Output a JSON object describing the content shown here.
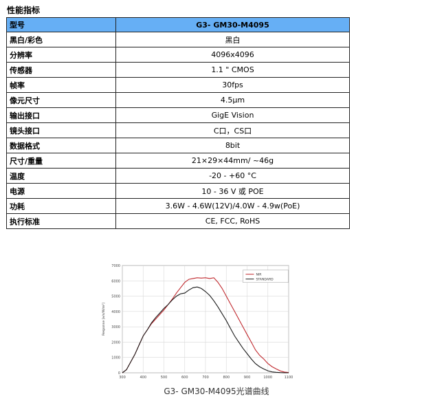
{
  "section_title": "性能指标",
  "spec_table": {
    "header": {
      "key": "型号",
      "value": "G3- GM30-M4095"
    },
    "rows": [
      {
        "key": "黑白/彩色",
        "value": "黑白"
      },
      {
        "key": "分辨率",
        "value": "4096x4096"
      },
      {
        "key": "传感器",
        "value": "1.1 \" CMOS"
      },
      {
        "key": "帧率",
        "value": "30fps"
      },
      {
        "key": "像元尺寸",
        "value": "4.5μm"
      },
      {
        "key": "输出接口",
        "value": "GigE Vision"
      },
      {
        "key": "镜头接口",
        "value": "C口，CS口"
      },
      {
        "key": "数据格式",
        "value": "8bit"
      },
      {
        "key": "尺寸/重量",
        "value": "21×29×44mm/ ~46g"
      },
      {
        "key": "温度",
        "value": "-20 - +60 °C"
      },
      {
        "key": "电源",
        "value": "10 - 36 V 或 POE"
      },
      {
        "key": "功耗",
        "value": "3.6W - 4.6W(12V)/4.0W - 4.9w(PoE)"
      },
      {
        "key": "执行标准",
        "value": "CE, FCC, RoHS"
      }
    ]
  },
  "chart_caption": "G3- GM30-M4095光谱曲线",
  "chart_data": {
    "type": "line",
    "title": "",
    "xlabel": "",
    "ylabel": "Response [e/s/W/m²]",
    "xlim": [
      300,
      1100
    ],
    "ylim": [
      0,
      7000
    ],
    "xticks": [
      300,
      400,
      500,
      600,
      700,
      800,
      900,
      1000,
      1100
    ],
    "yticks": [
      0,
      1000,
      2000,
      3000,
      4000,
      5000,
      6000,
      7000
    ],
    "grid": true,
    "legend_position": "top-right",
    "x": [
      300,
      320,
      340,
      360,
      380,
      400,
      420,
      440,
      460,
      480,
      500,
      520,
      540,
      560,
      580,
      600,
      620,
      640,
      660,
      680,
      700,
      720,
      740,
      760,
      780,
      800,
      820,
      840,
      860,
      880,
      900,
      920,
      940,
      960,
      980,
      1000,
      1020,
      1040,
      1060,
      1080,
      1100
    ],
    "series": [
      {
        "name": "NIR",
        "color": "#c0282d",
        "values": [
          0,
          200,
          700,
          1200,
          1800,
          2400,
          2800,
          3200,
          3500,
          3800,
          4100,
          4450,
          4800,
          5200,
          5550,
          5900,
          6100,
          6150,
          6200,
          6180,
          6200,
          6150,
          6200,
          5900,
          5500,
          5000,
          4500,
          4000,
          3500,
          3000,
          2500,
          2000,
          1500,
          1150,
          900,
          600,
          400,
          250,
          120,
          50,
          20
        ]
      },
      {
        "name": "STANDARD",
        "color": "#1a1a1a",
        "values": [
          0,
          200,
          700,
          1200,
          1800,
          2400,
          2800,
          3250,
          3600,
          3900,
          4200,
          4450,
          4750,
          5000,
          5150,
          5200,
          5400,
          5550,
          5600,
          5500,
          5300,
          5050,
          4700,
          4300,
          3850,
          3400,
          2900,
          2400,
          2000,
          1600,
          1250,
          900,
          600,
          400,
          250,
          130,
          60,
          30,
          15,
          5,
          0
        ]
      }
    ]
  }
}
